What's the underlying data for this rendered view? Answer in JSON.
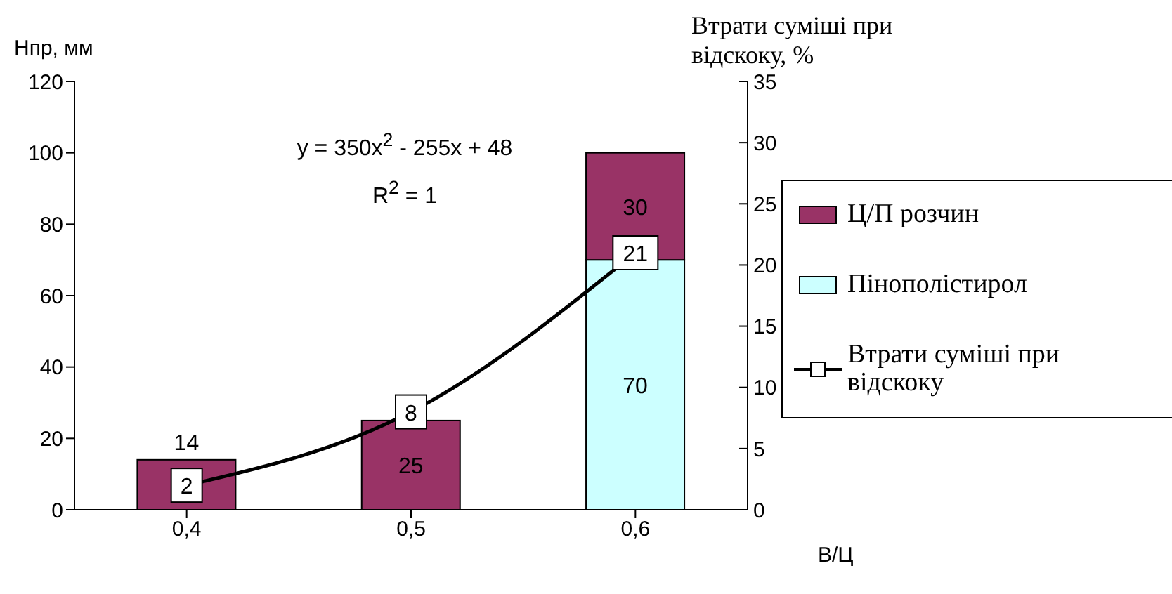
{
  "chart_data": {
    "type": "bar",
    "stacked": true,
    "categories": [
      "0,4",
      "0,5",
      "0,6"
    ],
    "series": [
      {
        "name": "Пінополістирол",
        "color": "#ccffff",
        "values": [
          null,
          null,
          70
        ]
      },
      {
        "name": "Ц/П розчин",
        "color": "#993366",
        "values": [
          14,
          25,
          30
        ]
      },
      {
        "name": "Втрати суміші при відскоку",
        "type": "line",
        "axis": "y2",
        "color": "#000000",
        "marker": "square",
        "values": [
          2,
          8,
          21
        ]
      }
    ],
    "ylabel": "Нпр, мм",
    "y2label": "Втрати суміші при відскоку, %",
    "xlabel": "В/Ц",
    "ylim": [
      0,
      120
    ],
    "yticks": [
      0,
      20,
      40,
      60,
      80,
      100,
      120
    ],
    "y2lim": [
      0,
      35
    ],
    "y2ticks": [
      0,
      5,
      10,
      15,
      20,
      25,
      30,
      35
    ],
    "annotations": [
      "y = 350x$^{2}$ - 255x + 48",
      "R$^{2}$ = 1"
    ],
    "data_labels": true,
    "grid": false,
    "legend": "right"
  }
}
